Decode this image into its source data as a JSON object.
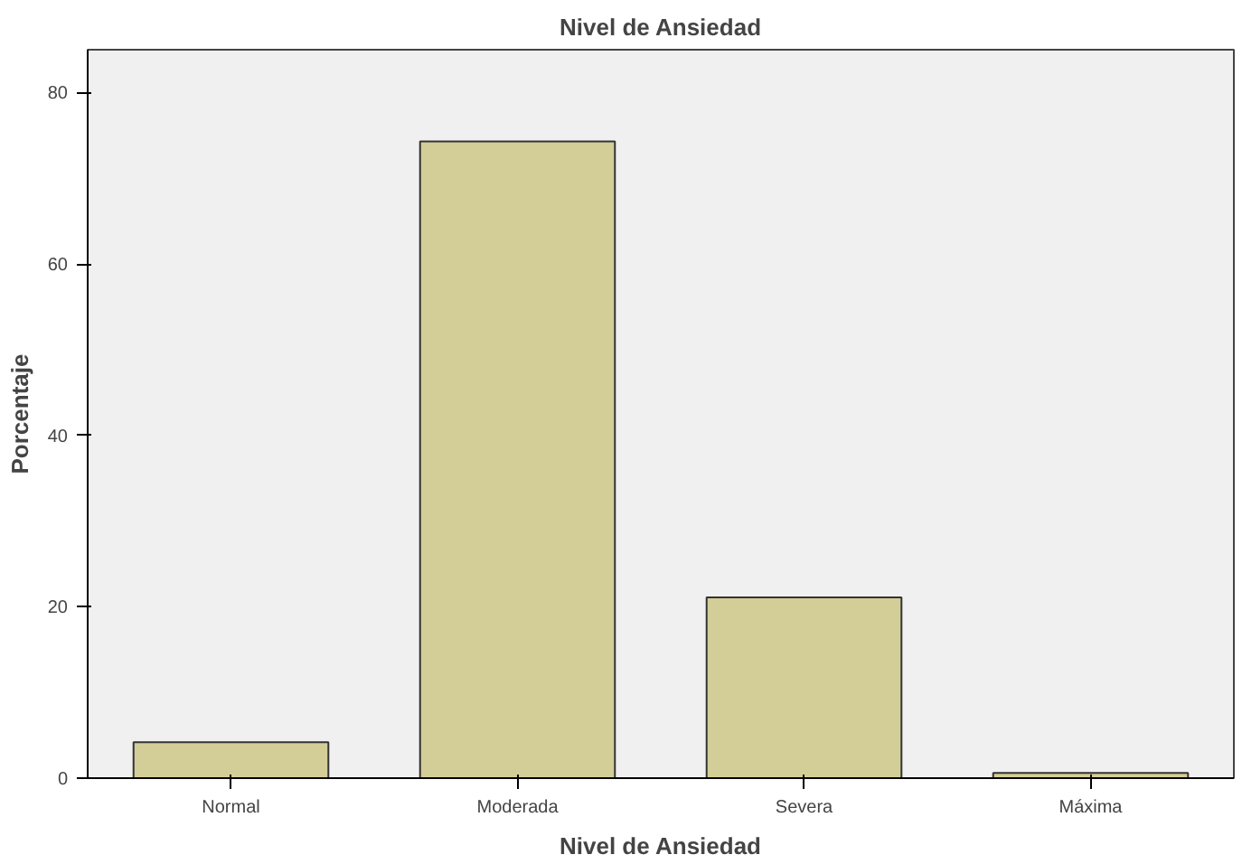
{
  "chart_data": {
    "type": "bar",
    "title": "Nivel de Ansiedad",
    "xlabel": "Nivel de Ansiedad",
    "ylabel": "Porcentaje",
    "categories": [
      "Normal",
      "Moderada",
      "Severa",
      "Máxima"
    ],
    "values": [
      4.2,
      74.3,
      21.1,
      0.6
    ],
    "color": "#d3ce97",
    "ylim": [
      0,
      85
    ],
    "yticks": [
      0,
      20,
      40,
      60,
      80
    ],
    "grid": false
  }
}
